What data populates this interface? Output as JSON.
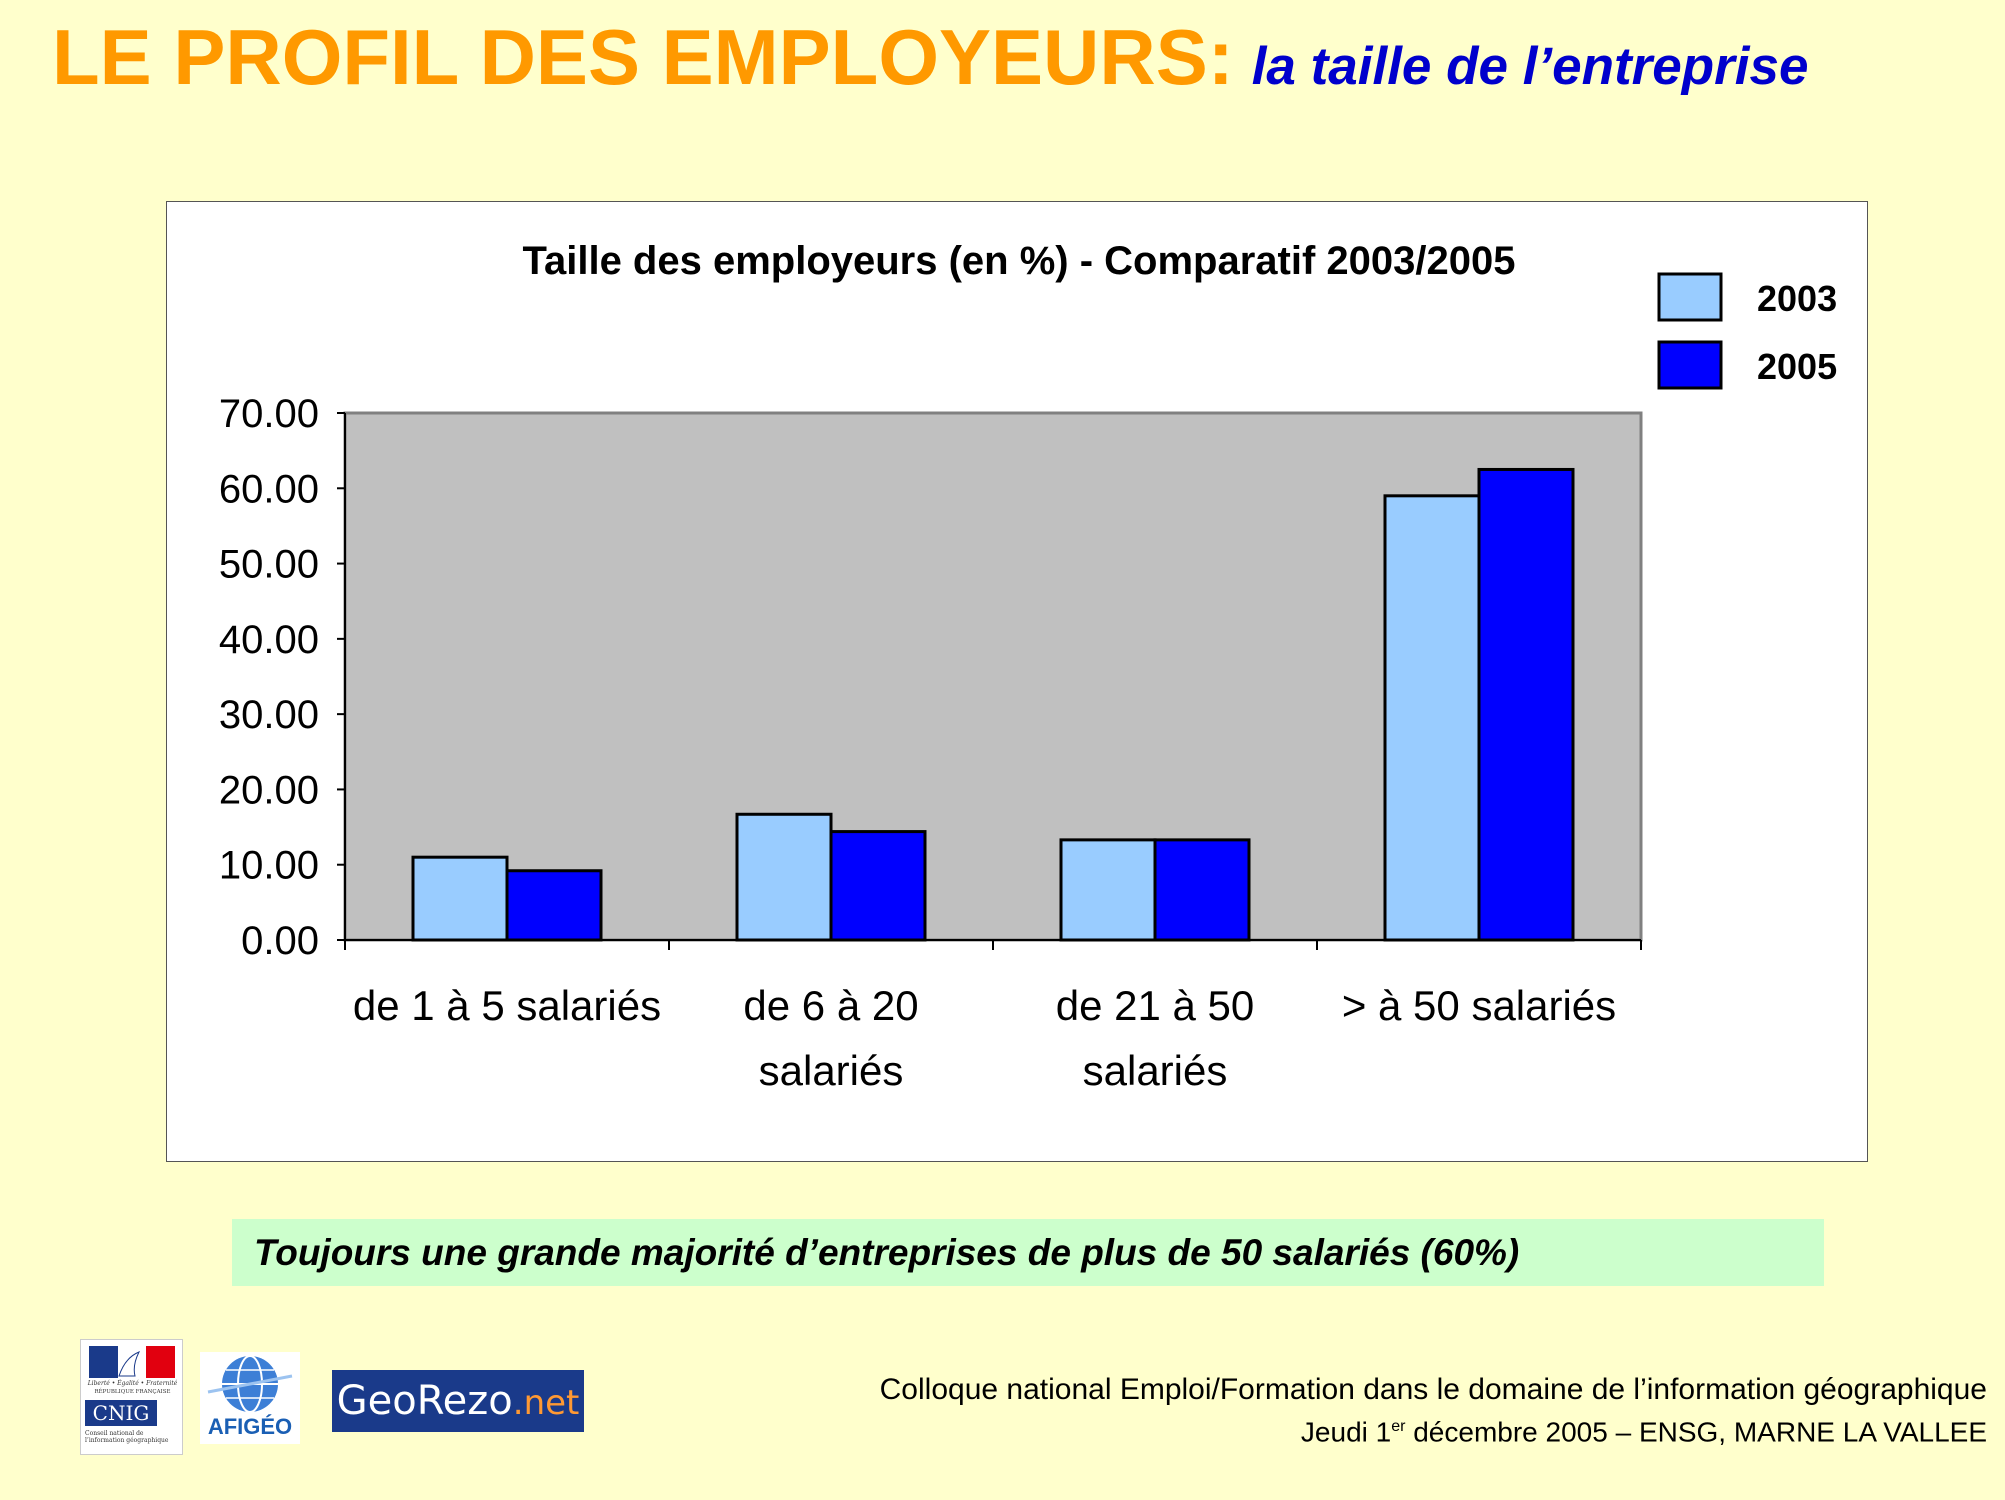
{
  "header": {
    "title_main": "LE PROFIL DES EMPLOYEURS:",
    "title_sub": "la taille de l’entreprise"
  },
  "chart_data": {
    "type": "bar",
    "title": "Taille des employeurs (en %) - Comparatif 2003/2005",
    "categories": [
      [
        "de 1 à 5 salariés"
      ],
      [
        "de 6 à 20",
        "salariés"
      ],
      [
        "de 21 à 50",
        "salariés"
      ],
      [
        "> à 50 salariés"
      ]
    ],
    "series": [
      {
        "name": "2003",
        "values": [
          11.0,
          16.7,
          13.3,
          59.0
        ],
        "color": "#99ccff"
      },
      {
        "name": "2005",
        "values": [
          9.2,
          14.4,
          13.3,
          62.5
        ],
        "color": "#0000ff"
      }
    ],
    "ylim": [
      0,
      70
    ],
    "yticks": [
      "0.00",
      "10.00",
      "20.00",
      "30.00",
      "40.00",
      "50.00",
      "60.00",
      "70.00"
    ],
    "legend_position": "top-right",
    "plot_background": "#c0c0c0",
    "xlabel": "",
    "ylabel": ""
  },
  "conclusion": {
    "text": "Toujours une grande majorité d’entreprises de plus de 50 salariés (60%)"
  },
  "footer": {
    "line1": "Colloque national Emploi/Formation dans le domaine de l’information géographique",
    "line2_prefix": "Jeudi 1",
    "line2_sup": "er",
    "line2_suffix": " décembre 2005 – ENSG, MARNE LA VALLEE"
  },
  "logos": {
    "cnig_name": "CNIG",
    "cnig_motto": "Liberté • Égalité • Fraternité",
    "cnig_rf": "RÉPUBLIQUE FRANÇAISE",
    "cnig_desc": "Conseil national de l’information géographique",
    "afigeo_name": "AFIGÉO",
    "georezo_main": "GeoRezo",
    "georezo_tld": ".net"
  }
}
